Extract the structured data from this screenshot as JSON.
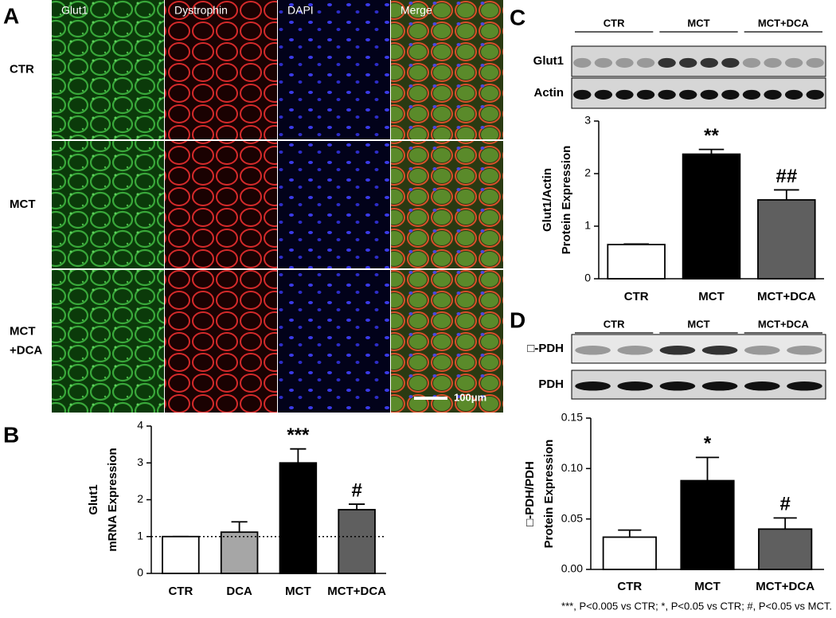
{
  "panel_letters": [
    "A",
    "B",
    "C",
    "D"
  ],
  "microscopy": {
    "columns": [
      "Glut1",
      "Dystrophin",
      "DAPI",
      "Merge"
    ],
    "rows": [
      [
        "CTR"
      ],
      [
        "MCT"
      ],
      [
        "MCT",
        "+DCA"
      ]
    ],
    "scale_bar": "100μm"
  },
  "blot_C": {
    "groups": [
      "CTR",
      "MCT",
      "MCT+DCA"
    ],
    "rows": [
      "Glut1",
      "Actin"
    ]
  },
  "blot_D": {
    "groups": [
      "CTR",
      "MCT",
      "MCT+DCA"
    ],
    "rows": [
      "□-PDH",
      "PDH"
    ]
  },
  "chart_data": [
    {
      "type": "bar",
      "ylabel": [
        "Glut1",
        "mRNA Expression"
      ],
      "categories": [
        "CTR",
        "DCA",
        "MCT",
        "MCT+DCA"
      ],
      "values": [
        1,
        1.12,
        3.0,
        1.73
      ],
      "errors": [
        0,
        0.28,
        0.38,
        0.15
      ],
      "colors": [
        "#ffffff",
        "#a6a6a6",
        "#000000",
        "#5f5f5f"
      ],
      "annotations": [
        null,
        null,
        "***",
        "#"
      ],
      "reference_line": 1,
      "ylim": [
        0,
        4
      ],
      "yticks": [
        0,
        1,
        2,
        3,
        4
      ]
    },
    {
      "type": "bar",
      "ylabel": [
        "Glut1/Actin",
        "Protein Expression"
      ],
      "categories": [
        "CTR",
        "MCT",
        "MCT+DCA"
      ],
      "values": [
        0.65,
        2.37,
        1.5
      ],
      "errors": [
        0.01,
        0.09,
        0.19
      ],
      "colors": [
        "#ffffff",
        "#000000",
        "#5f5f5f"
      ],
      "annotations": [
        null,
        "**",
        "##"
      ],
      "ylim": [
        0,
        3
      ],
      "yticks": [
        0,
        1,
        2,
        3
      ]
    },
    {
      "type": "bar",
      "ylabel": [
        "□-PDH/PDH",
        "Protein Expression"
      ],
      "categories": [
        "CTR",
        "MCT",
        "MCT+DCA"
      ],
      "values": [
        0.032,
        0.088,
        0.04
      ],
      "errors": [
        0.007,
        0.023,
        0.011
      ],
      "colors": [
        "#ffffff",
        "#000000",
        "#5f5f5f"
      ],
      "annotations": [
        null,
        "*",
        "#"
      ],
      "ylim": [
        0,
        0.15
      ],
      "yticks": [
        {
          "value": 0,
          "label": "0.00"
        },
        {
          "value": 0.05,
          "label": "0.05"
        },
        {
          "value": 0.1,
          "label": "0.10"
        },
        {
          "value": 0.15,
          "label": "0.15"
        }
      ]
    }
  ],
  "footnote": "***, P<0.005 vs CTR; *, P<0.05 vs CTR; #, P<0.05 vs MCT."
}
